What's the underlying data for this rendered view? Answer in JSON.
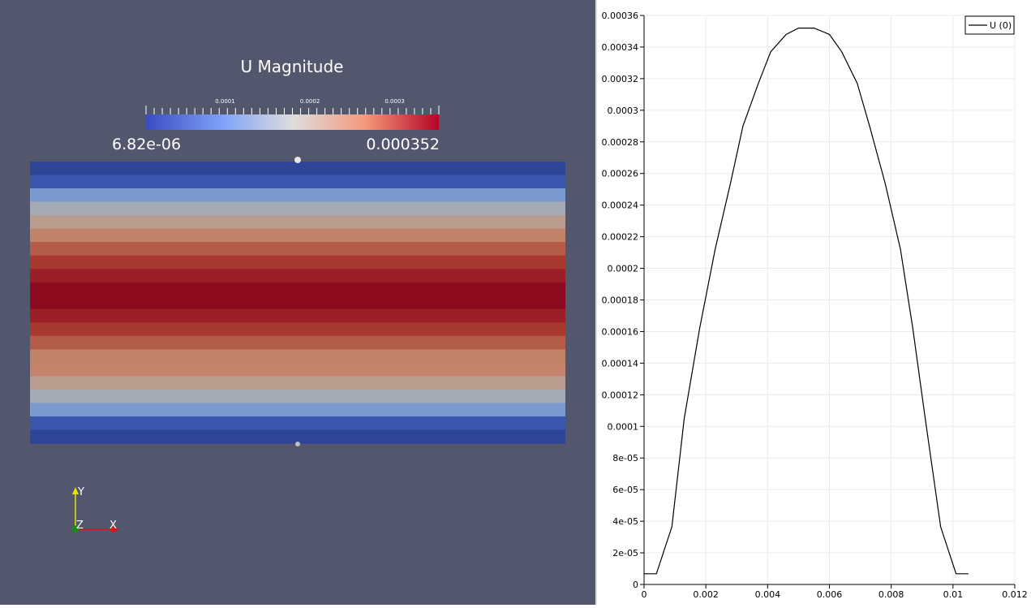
{
  "render_view": {
    "color_legend": {
      "title": "U Magnitude",
      "min_label": "6.82e-06",
      "max_label": "0.000352",
      "tick_labels": [
        "0.0001",
        "0.0002",
        "0.0003"
      ],
      "tick_values": [
        0.0001,
        0.0002,
        0.0003
      ],
      "range": [
        6.82e-06,
        0.000352
      ],
      "colormap": "Cool to Warm"
    },
    "colors": {
      "background": "#52576e",
      "bands": [
        "#2f4597",
        "#3a56ad",
        "#7a99cf",
        "#a2aab5",
        "#b89c8e",
        "#c1826a",
        "#b35c47",
        "#a8392f",
        "#9b1f26",
        "#8d0b1f",
        "#8d0b1f",
        "#9b1f26",
        "#a8392f",
        "#b35c47",
        "#c1826a",
        "#c5836b",
        "#b89c8e",
        "#a2aab5",
        "#7a99cf",
        "#3a56ad",
        "#2f4597"
      ]
    },
    "axes_triad": {
      "y_label": "Y",
      "z_label": "Z",
      "x_label": "X"
    }
  },
  "chart_data": {
    "type": "line",
    "series": [
      {
        "name": "U (0)",
        "color": "#000000",
        "x": [
          0,
          0.0004,
          0.0009,
          0.0013,
          0.0018,
          0.0023,
          0.0028,
          0.0032,
          0.0037,
          0.0041,
          0.0046,
          0.005,
          0.0055,
          0.006,
          0.0064,
          0.0069,
          0.0073,
          0.0078,
          0.0083,
          0.0087,
          0.0091,
          0.0096,
          0.0101,
          0.0105
        ],
        "y": [
          6.8e-06,
          6.8e-06,
          3.65e-05,
          0.000105,
          0.000162,
          0.000212,
          0.000254,
          0.00029,
          0.000317,
          0.000337,
          0.000348,
          0.000352,
          0.000352,
          0.000348,
          0.000337,
          0.000317,
          0.00029,
          0.000254,
          0.000212,
          0.000162,
          0.000105,
          3.65e-05,
          6.8e-06,
          6.8e-06
        ]
      }
    ],
    "xlim": [
      0,
      0.012
    ],
    "ylim": [
      0,
      0.00036
    ],
    "x_ticks": [
      0,
      0.002,
      0.004,
      0.006,
      0.008,
      0.01,
      0.012
    ],
    "x_tick_labels": [
      "0",
      "0.002",
      "0.004",
      "0.006",
      "0.008",
      "0.01",
      "0.012"
    ],
    "y_ticks": [
      0,
      2e-05,
      4e-05,
      6e-05,
      8e-05,
      0.0001,
      0.00012,
      0.00014,
      0.00016,
      0.00018,
      0.0002,
      0.00022,
      0.00024,
      0.00026,
      0.00028,
      0.0003,
      0.00032,
      0.00034,
      0.00036
    ],
    "y_tick_labels": [
      "0",
      "2e-05",
      "4e-05",
      "6e-05",
      "8e-05",
      "0.0001",
      "0.00012",
      "0.00014",
      "0.00016",
      "0.00018",
      "0.0002",
      "0.00022",
      "0.00024",
      "0.00026",
      "0.00028",
      "0.0003",
      "0.00032",
      "0.00034",
      "0.00036"
    ],
    "grid": true,
    "legend_position": "top-right"
  }
}
